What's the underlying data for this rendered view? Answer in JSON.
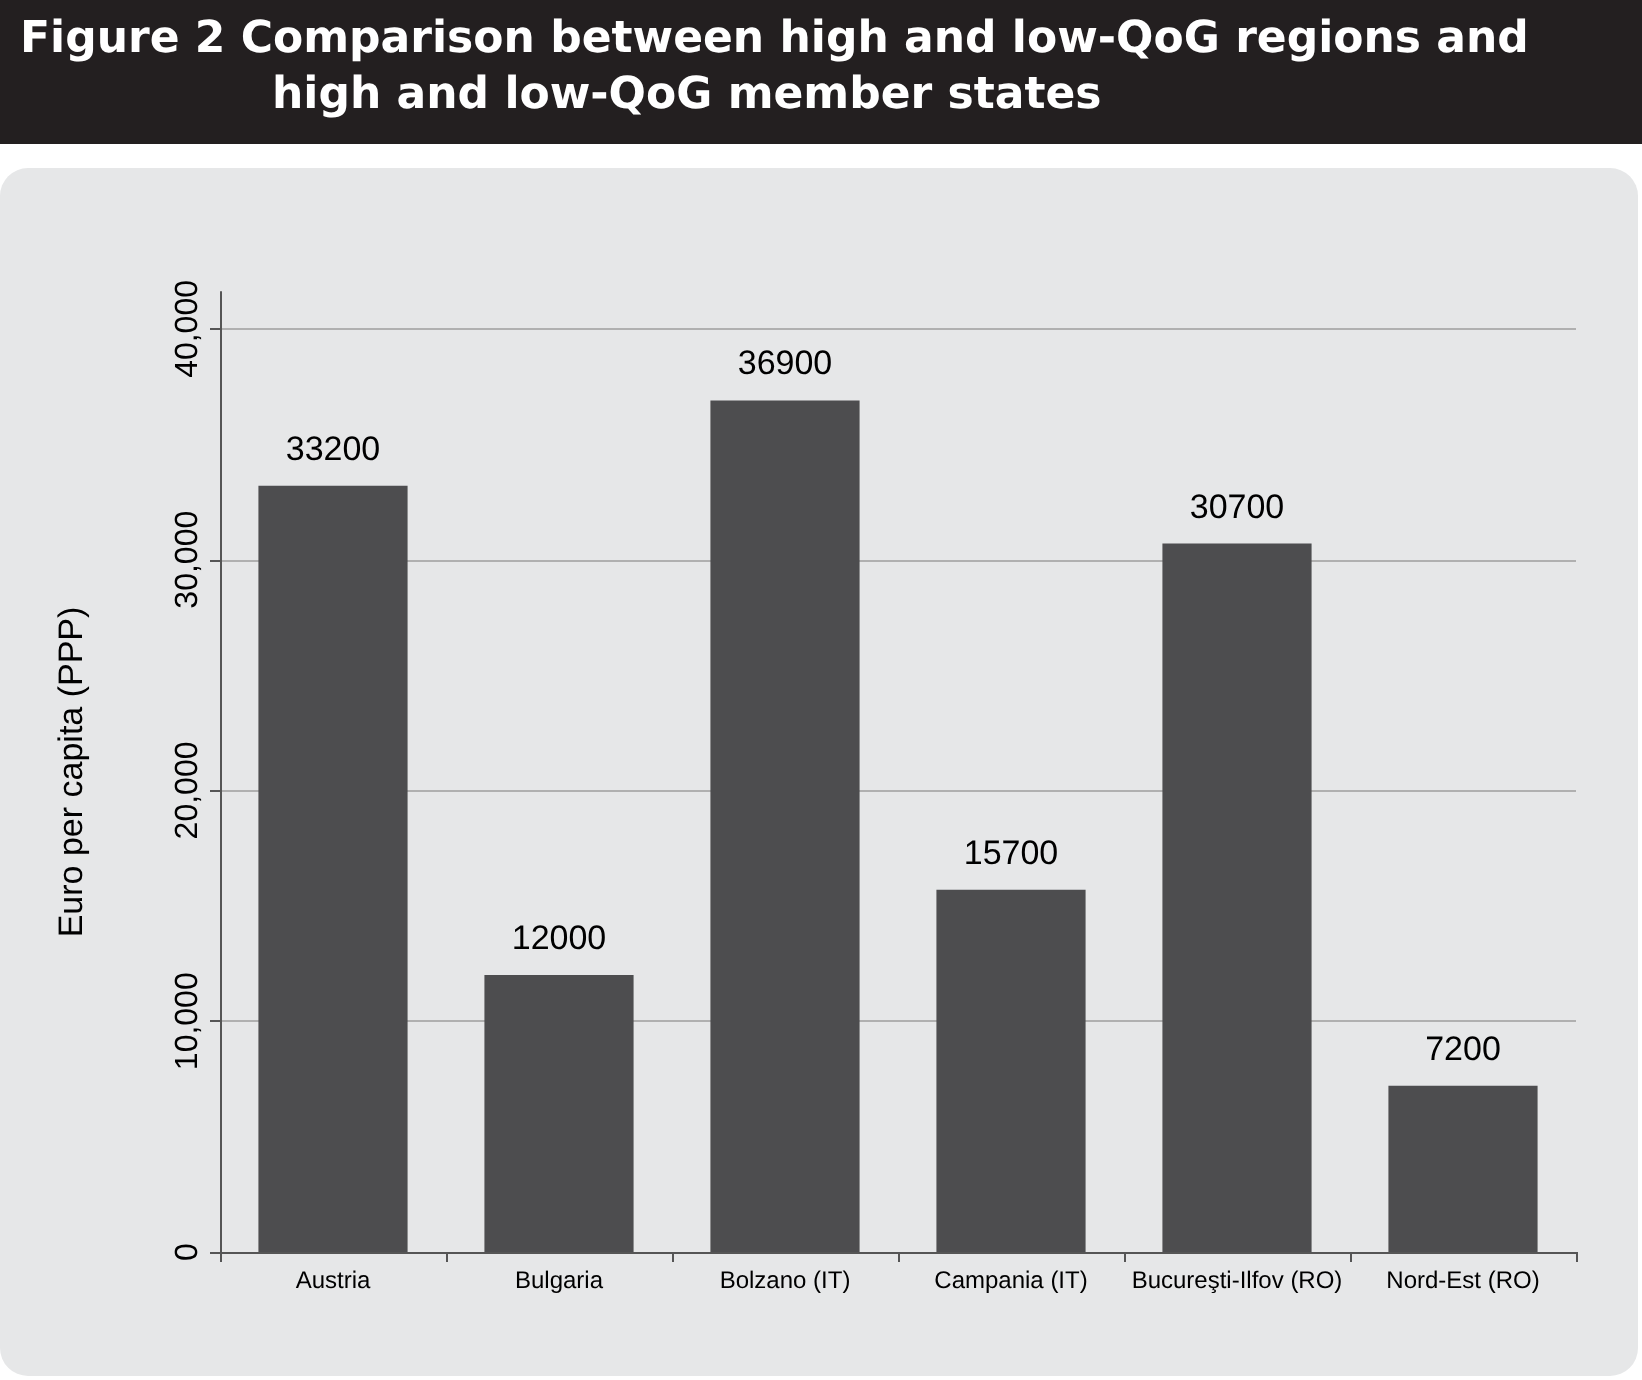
{
  "chart_data": {
    "type": "bar",
    "title": "Figure 2 Comparison between high and low-QoG regions and high and low-QoG member states",
    "ylabel": "Euro per capita (PPP)",
    "categories": [
      "Austria",
      "Bulgaria",
      "Bolzano (IT)",
      "Campania (IT)",
      "Bucureşti-Ilfov (RO)",
      "Nord-Est (RO)"
    ],
    "values": [
      33200,
      12000,
      36900,
      15700,
      30700,
      7200
    ],
    "color": "#4d4d4f",
    "ylim": [
      0,
      41600
    ],
    "yticks": [
      {
        "value": 0,
        "label": "0"
      },
      {
        "value": 10000,
        "label": "10,000"
      },
      {
        "value": 20000,
        "label": "20,000"
      },
      {
        "value": 30000,
        "label": "30,000"
      },
      {
        "value": 40000,
        "label": "40,000"
      }
    ],
    "grid": "y",
    "data_labels": true
  }
}
